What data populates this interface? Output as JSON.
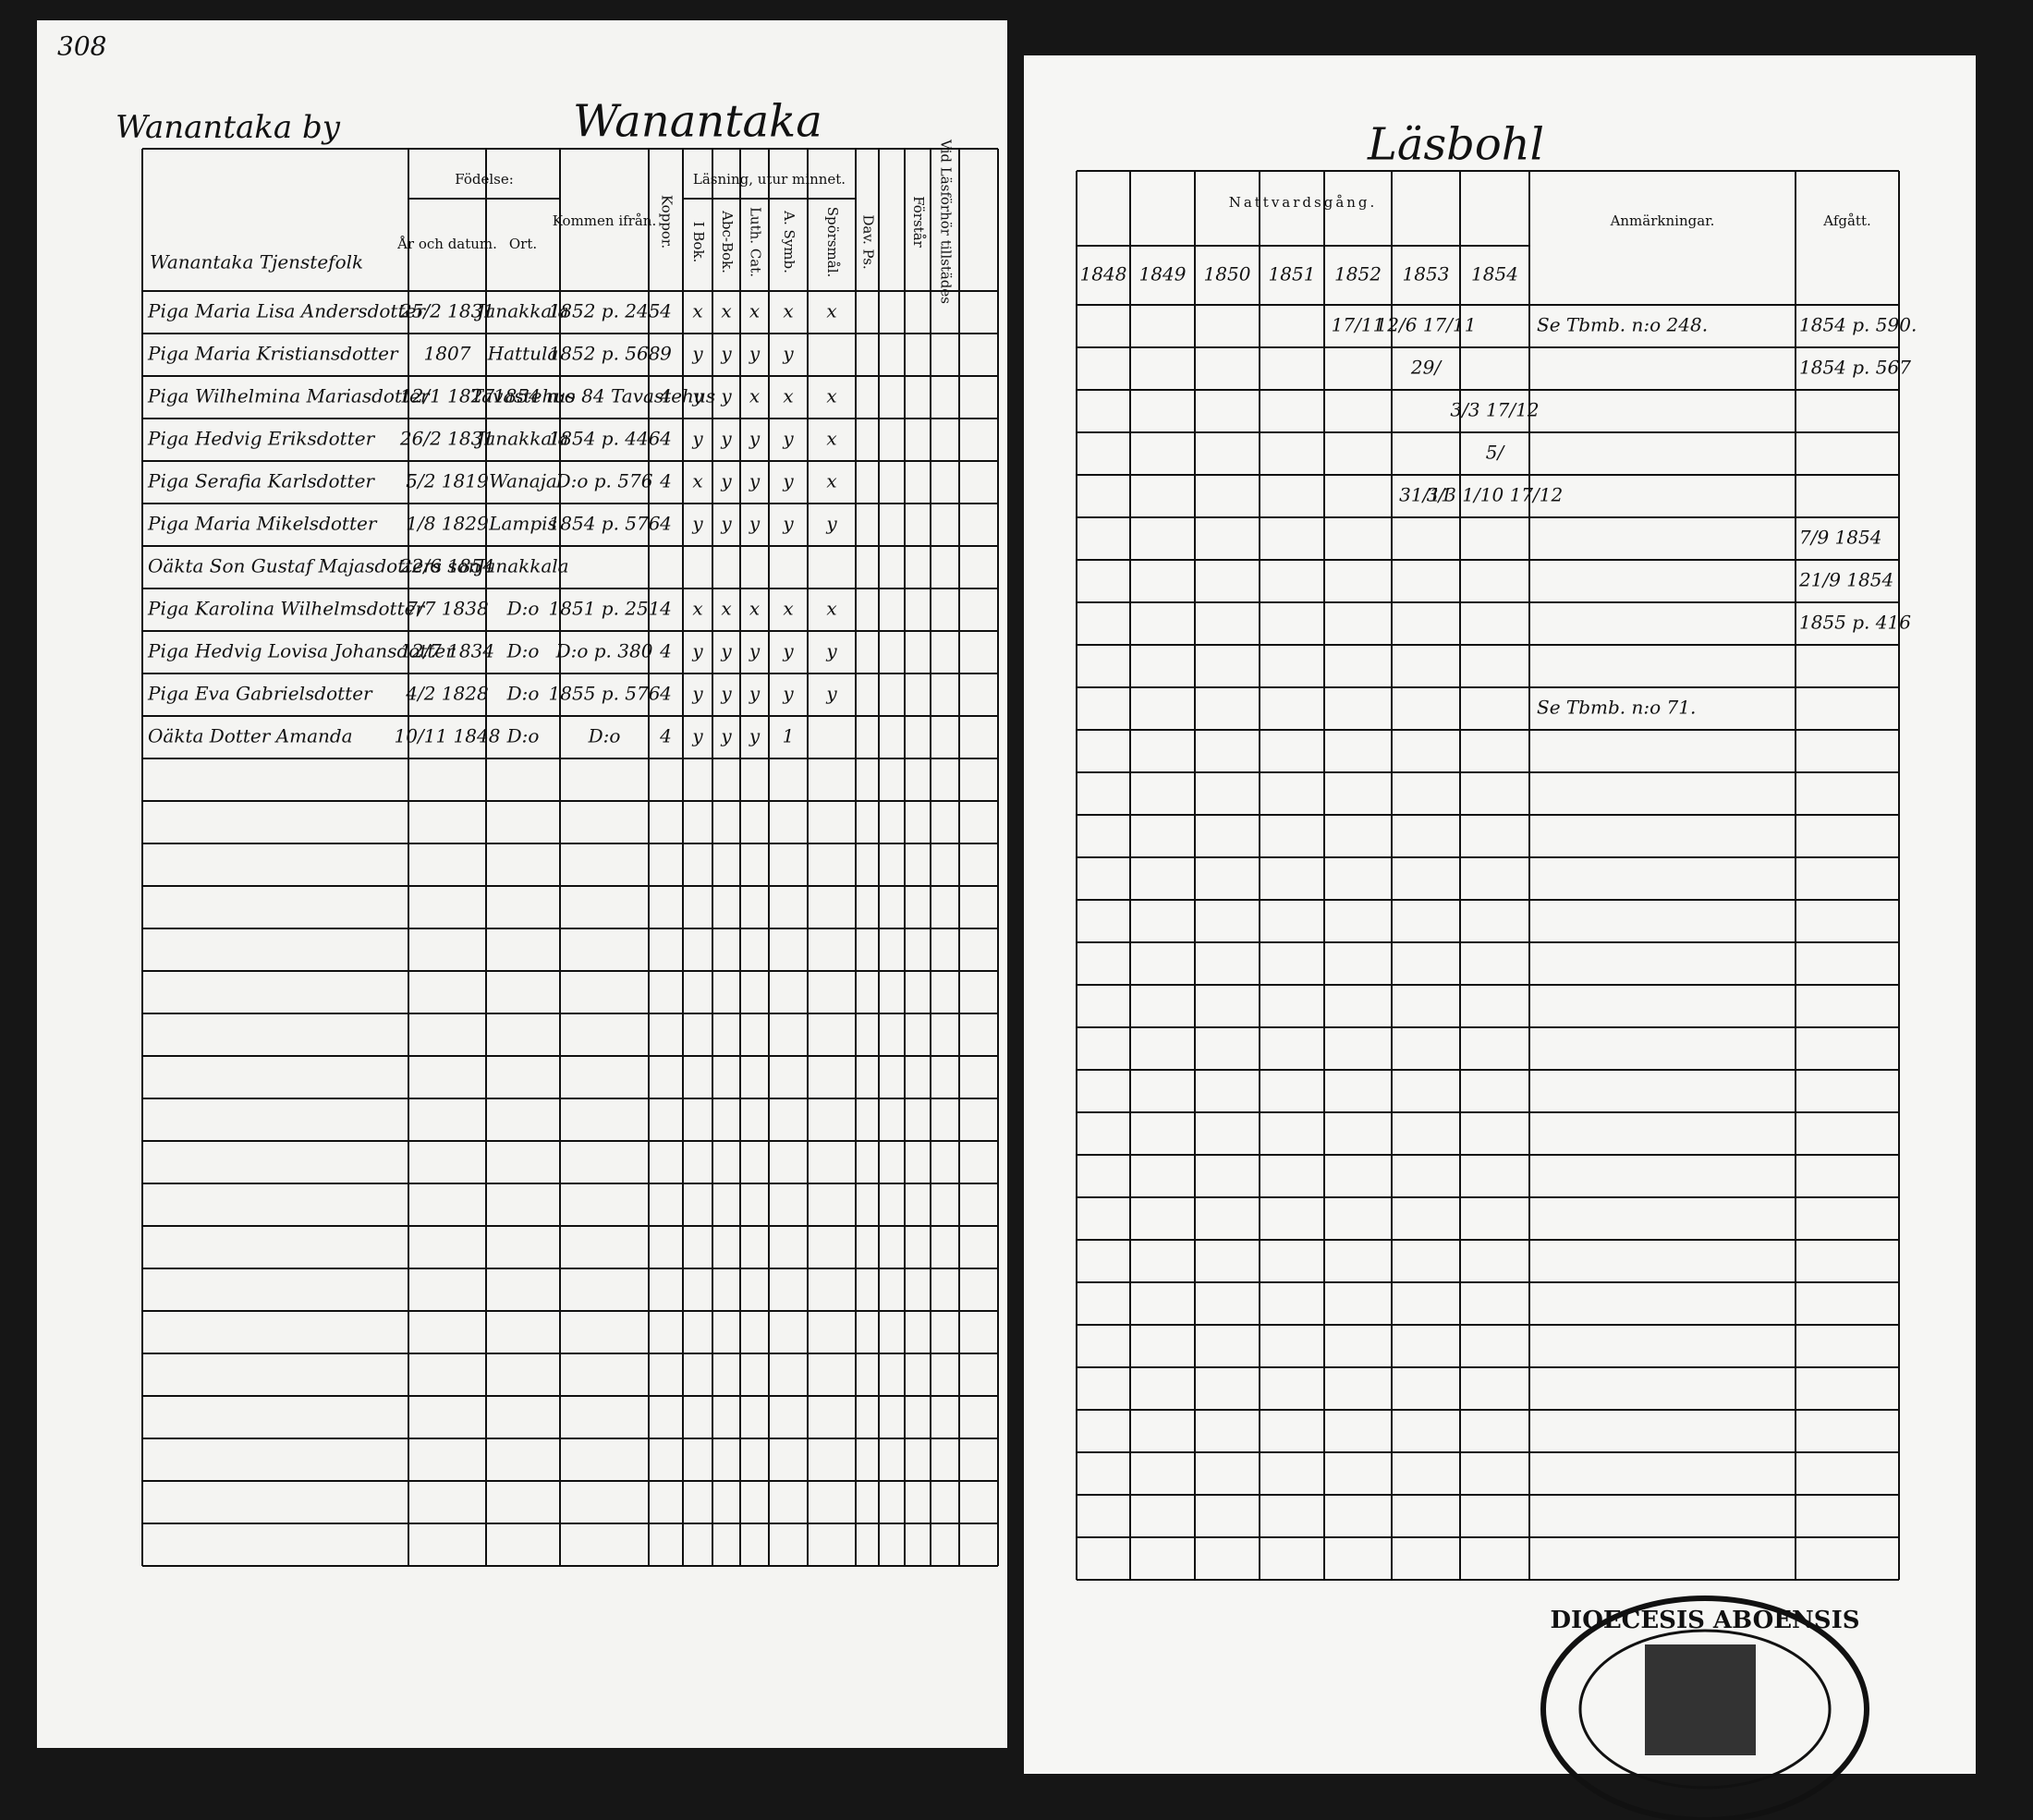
{
  "page_number": "308",
  "left": {
    "village": "Wanantaka by",
    "heading": "Wanantaka",
    "group": "Wanantaka Tjenstefolk",
    "birth": "Födelse:",
    "birth_date": "År och datum.",
    "birth_place": "Ort.",
    "came_from": "Kommen ifrån.",
    "smallpox": "Koppor.",
    "reading": "Läsning, utur minnet.",
    "reading_cols": [
      "I Bok.",
      "Abc-Bok.",
      "Luth. Cat.",
      "A. Symb.",
      "Spörsmål."
    ],
    "psalms": "Dav. Ps.",
    "understands": "Förstår",
    "attended": "Vid Läsförhör tillstädes"
  },
  "right": {
    "heading": "Läsbohl",
    "communion": "Nattvardsgång.",
    "years": [
      "1848",
      "1849",
      "1850",
      "1851",
      "1852",
      "1853",
      "1854"
    ],
    "remarks": "Anmärkningar.",
    "departed": "Afgått."
  },
  "rows": [
    {
      "name": "Piga Maria Lisa Andersdotter",
      "date": "25/2 1831",
      "place": "Janakkala",
      "from": "1852 p. 245",
      "kopp": "4",
      "reading": [
        "x",
        "x",
        "x",
        "x",
        "x"
      ],
      "communion": {
        "1852": "17/11",
        "1853": "12/6 17/11"
      },
      "remark": "Se Tbmb. n:o 248.",
      "departed": "1854 p. 590."
    },
    {
      "name": "Piga Maria Kristiansdotter",
      "date": "1807",
      "place": "Hattula",
      "from": "1852 p. 568",
      "kopp": "9",
      "reading": [
        "y",
        "y",
        "y",
        "y"
      ],
      "communion": {
        "1853": "29/"
      },
      "departed": "1854 p. 567"
    },
    {
      "name": "Piga Wilhelmina Mariasdotter",
      "date": "12/1 1827",
      "place": "Tavastehus",
      "from": "1854 n:o 84 Tavastehus",
      "kopp": "4",
      "reading": [
        "y",
        "y",
        "x",
        "x",
        "x"
      ],
      "communion": {
        "1854": "3/3 17/12"
      }
    },
    {
      "name": "Piga Hedvig Eriksdotter",
      "date": "26/2 1831",
      "place": "Janakkala",
      "from": "1854 p. 446",
      "kopp": "4",
      "reading": [
        "y",
        "y",
        "y",
        "y",
        "x"
      ],
      "communion": {
        "1854": "5/"
      }
    },
    {
      "name": "Piga Serafia Karlsdotter",
      "date": "5/2 1819",
      "place": "Wanaja",
      "from": "D:o p. 576",
      "kopp": "4",
      "reading": [
        "x",
        "y",
        "y",
        "y",
        "x"
      ],
      "communion": {
        "1853": "31/11",
        "1854": "3/3 1/10 17/12"
      }
    },
    {
      "name": "Piga Maria Mikelsdotter",
      "date": "1/8 1829",
      "place": "Lampis",
      "from": "1854 p. 576",
      "kopp": "4",
      "reading": [
        "y",
        "y",
        "y",
        "y",
        "y"
      ],
      "departed": "7/9 1854"
    },
    {
      "name": "Oäkta Son Gustaf Majasdotters son",
      "date": "22/6 1854",
      "place": "Janakkala",
      "departed": "21/9 1854"
    },
    {
      "name": "Piga Karolina Wilhelmsdotter",
      "date": "7/7 1838",
      "place": "D:o",
      "from": "1851 p. 251",
      "kopp": "4",
      "reading": [
        "x",
        "x",
        "x",
        "x",
        "x"
      ],
      "departed": "1855 p. 416"
    },
    {
      "name": "Piga Hedvig Lovisa Johansdotter",
      "date": "12/7 1834",
      "place": "D:o",
      "from": "D:o p. 380",
      "kopp": "4",
      "reading": [
        "y",
        "y",
        "y",
        "y",
        "y"
      ]
    },
    {
      "name": "Piga Eva Gabrielsdotter",
      "date": "4/2 1828",
      "place": "D:o",
      "from": "1855 p. 576",
      "kopp": "4",
      "reading": [
        "y",
        "y",
        "y",
        "y",
        "y"
      ],
      "remark": "Se Tbmb. n:o 71."
    },
    {
      "name": "Oäkta Dotter Amanda",
      "date": "10/11 1848",
      "place": "D:o",
      "from": "D:o",
      "kopp": "4",
      "reading": [
        "y",
        "y",
        "y",
        "1"
      ]
    }
  ],
  "stamp": "DIOECESIS ABOENSIS"
}
